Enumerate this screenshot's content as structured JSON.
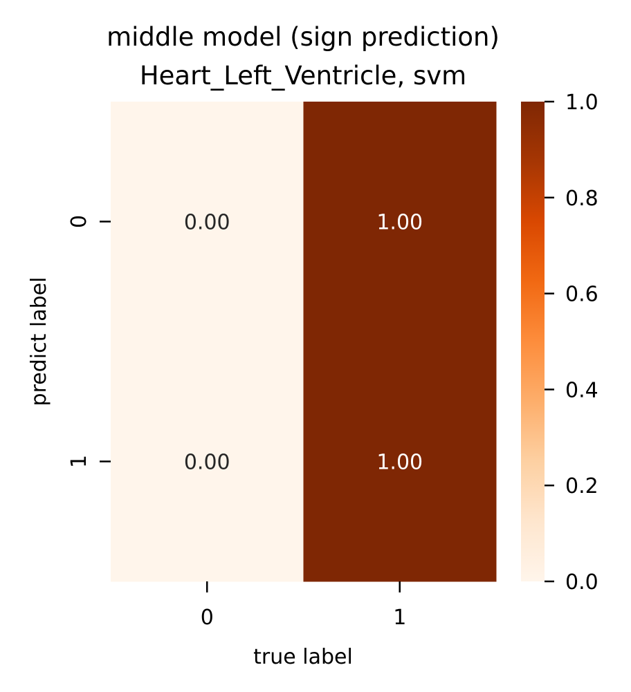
{
  "chart_data": {
    "type": "heatmap",
    "title": "middle model (sign prediction)",
    "subtitle": "Heart_Left_Ventricle, svm",
    "xlabel": "true label",
    "ylabel": "predict label",
    "x_categories": [
      "0",
      "1"
    ],
    "y_categories": [
      "0",
      "1"
    ],
    "values": [
      [
        0.0,
        1.0
      ],
      [
        0.0,
        1.0
      ]
    ],
    "cell_labels": [
      [
        "0.00",
        "1.00"
      ],
      [
        "0.00",
        "1.00"
      ]
    ],
    "colorbar": {
      "range": [
        0.0,
        1.0
      ],
      "ticks": [
        "0.0",
        "0.2",
        "0.4",
        "0.6",
        "0.8",
        "1.0"
      ],
      "colormap": "Oranges",
      "colors": [
        "#fff5eb",
        "#fee6ce",
        "#fdd0a2",
        "#fdae6b",
        "#fd8d3c",
        "#f16913",
        "#d94801",
        "#a63603",
        "#7f2704"
      ]
    },
    "grid": false
  }
}
